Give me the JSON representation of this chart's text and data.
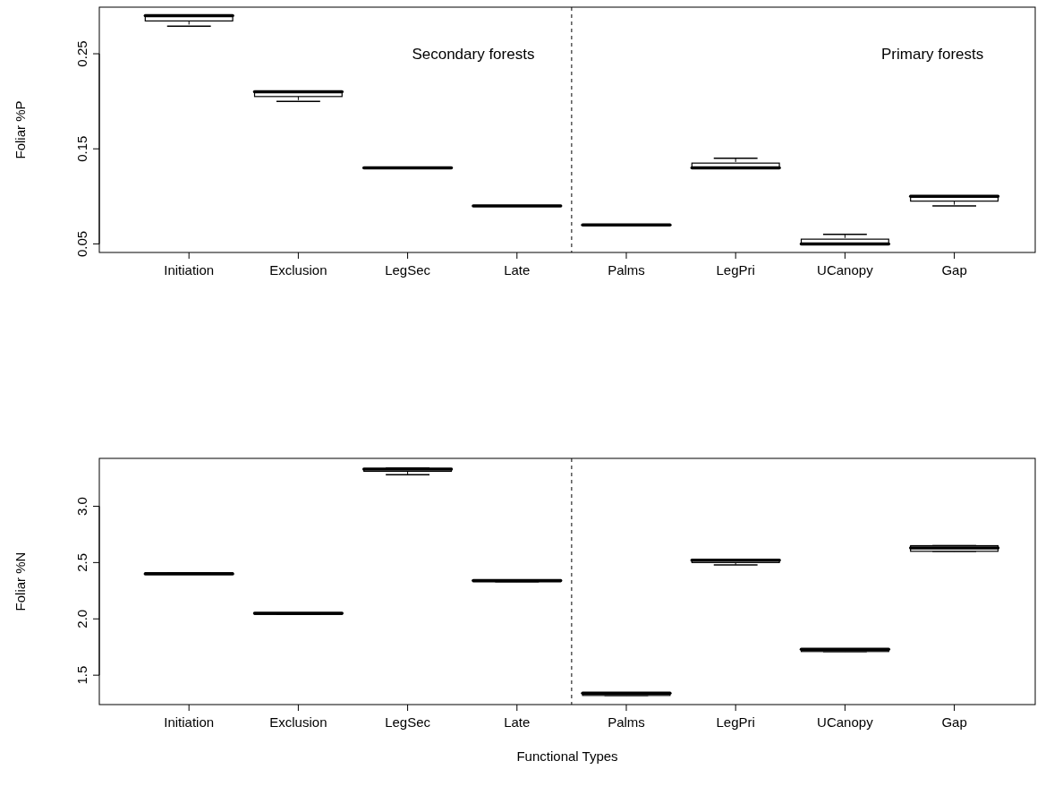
{
  "chart_data": [
    {
      "type": "box",
      "ylabel": "Foliar %P",
      "categories": [
        "Initiation",
        "Exclusion",
        "LegSec",
        "Late",
        "Palms",
        "LegPri",
        "UCanopy",
        "Gap"
      ],
      "boxes": [
        {
          "low": 0.279,
          "q1": 0.2845,
          "median": 0.29,
          "q3": 0.29,
          "high": 0.29
        },
        {
          "low": 0.2,
          "q1": 0.205,
          "median": 0.21,
          "q3": 0.21,
          "high": 0.21
        },
        {
          "low": 0.13,
          "q1": 0.13,
          "median": 0.13,
          "q3": 0.13,
          "high": 0.13
        },
        {
          "low": 0.09,
          "q1": 0.09,
          "median": 0.09,
          "q3": 0.09,
          "high": 0.09
        },
        {
          "low": 0.07,
          "q1": 0.07,
          "median": 0.07,
          "q3": 0.07,
          "high": 0.07
        },
        {
          "low": 0.13,
          "q1": 0.13,
          "median": 0.13,
          "q3": 0.135,
          "high": 0.14
        },
        {
          "low": 0.05,
          "q1": 0.05,
          "median": 0.05,
          "q3": 0.055,
          "high": 0.06
        },
        {
          "low": 0.09,
          "q1": 0.095,
          "median": 0.1,
          "q3": 0.1,
          "high": 0.1
        }
      ],
      "ylim": [
        0.041,
        0.299
      ],
      "yticks": [
        0.05,
        0.15,
        0.25
      ],
      "annotations": [
        "Secondary forests",
        "Primary forests"
      ]
    },
    {
      "type": "box",
      "ylabel": "Foliar %N",
      "xlabel": "Functional Types",
      "categories": [
        "Initiation",
        "Exclusion",
        "LegSec",
        "Late",
        "Palms",
        "LegPri",
        "UCanopy",
        "Gap"
      ],
      "boxes": [
        {
          "low": 2.4,
          "q1": 2.4,
          "median": 2.4,
          "q3": 2.41,
          "high": 2.41
        },
        {
          "low": 2.04,
          "q1": 2.04,
          "median": 2.05,
          "q3": 2.05,
          "high": 2.05
        },
        {
          "low": 3.28,
          "q1": 3.31,
          "median": 3.33,
          "q3": 3.33,
          "high": 3.34
        },
        {
          "low": 2.33,
          "q1": 2.33,
          "median": 2.34,
          "q3": 2.34,
          "high": 2.34
        },
        {
          "low": 1.32,
          "q1": 1.32,
          "median": 1.34,
          "q3": 1.34,
          "high": 1.34
        },
        {
          "low": 2.48,
          "q1": 2.5,
          "median": 2.52,
          "q3": 2.52,
          "high": 2.52
        },
        {
          "low": 1.71,
          "q1": 1.71,
          "median": 1.73,
          "q3": 1.73,
          "high": 1.73
        },
        {
          "low": 2.6,
          "q1": 2.6,
          "median": 2.63,
          "q3": 2.65,
          "high": 2.65
        }
      ],
      "ylim": [
        1.239,
        3.425
      ],
      "yticks": [
        1.5,
        {
          "value": 2,
          "label": "2.0"
        },
        2.5,
        {
          "value": 3,
          "label": "3.0"
        }
      ]
    }
  ]
}
